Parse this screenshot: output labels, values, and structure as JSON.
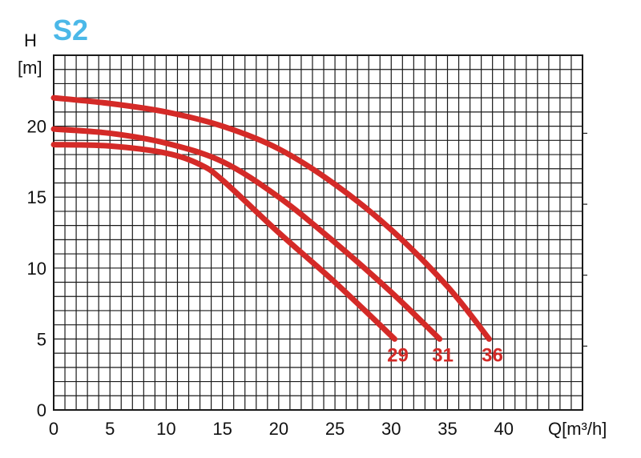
{
  "colors": {
    "title": "#4bb8e8",
    "curve": "#d42a27",
    "grid": "#1a1a1a",
    "text": "#111111"
  },
  "chart_data": {
    "type": "line",
    "title": "S2",
    "ylabel_line1": "H",
    "ylabel_line2": "[m]",
    "xlabel": "Q[m³/h]",
    "xlim": [
      0,
      47
    ],
    "ylim": [
      0,
      25
    ],
    "x_ticks": [
      0,
      5,
      10,
      15,
      20,
      25,
      30,
      35,
      40
    ],
    "x_tick_labels": [
      "0",
      "5",
      "10",
      "15",
      "20",
      "25",
      "30",
      "35",
      "40"
    ],
    "y_ticks": [
      0,
      5,
      10,
      15,
      20
    ],
    "y_tick_labels": [
      "0",
      "5",
      "10",
      "15",
      "20"
    ],
    "grid": true,
    "grid_x_step": 1,
    "grid_y_step": 1,
    "series": [
      {
        "name": "29",
        "x": [
          0,
          5,
          10,
          13,
          15,
          20,
          25,
          30.3
        ],
        "y": [
          18.7,
          18.6,
          18.1,
          17.3,
          16.2,
          12.5,
          9.0,
          5.0
        ]
      },
      {
        "name": "31",
        "x": [
          0,
          5,
          10,
          15,
          20,
          25,
          30,
          34.3
        ],
        "y": [
          19.8,
          19.5,
          18.8,
          17.5,
          15.0,
          11.8,
          8.3,
          5.0
        ]
      },
      {
        "name": "36",
        "x": [
          0,
          5,
          10,
          15,
          20,
          25,
          30,
          35,
          38.7
        ],
        "y": [
          22.0,
          21.6,
          21.0,
          20.0,
          18.4,
          15.9,
          12.7,
          8.7,
          5.0
        ]
      }
    ]
  }
}
